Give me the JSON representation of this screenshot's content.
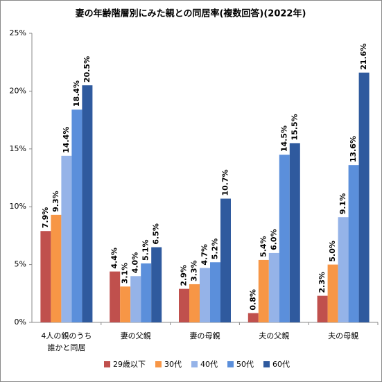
{
  "chart_data": {
    "type": "bar",
    "title": "妻の年齢階層別にみた親との同居率(複数回答)(2022年)",
    "categories": [
      "4人の親のうち\n誰かと同居",
      "妻の父親",
      "妻の母親",
      "夫の父親",
      "夫の母親"
    ],
    "series": [
      {
        "name": "29歳以下",
        "color": "#c0504d",
        "values": [
          7.9,
          4.4,
          2.9,
          0.8,
          2.3
        ],
        "value_labels": [
          "7.9%",
          "4.4%",
          "2.9%",
          "0.8%",
          "2.3%"
        ]
      },
      {
        "name": "30代",
        "color": "#f79646",
        "values": [
          9.3,
          3.1,
          3.3,
          5.4,
          5.0
        ],
        "value_labels": [
          "9.3%",
          "3.1%",
          "3.3%",
          "5.4%",
          "5.0%"
        ]
      },
      {
        "name": "40代",
        "color": "#95b3e8",
        "values": [
          14.4,
          4.0,
          4.7,
          6.0,
          9.1
        ],
        "value_labels": [
          "14.4%",
          "4.0%",
          "4.7%",
          "6.0%",
          "9.1%"
        ]
      },
      {
        "name": "50代",
        "color": "#5b8fdb",
        "values": [
          18.4,
          5.1,
          5.2,
          14.5,
          13.6
        ],
        "value_labels": [
          "18.4%",
          "5.1%",
          "5.2%",
          "14.5%",
          "13.6%"
        ]
      },
      {
        "name": "60代",
        "color": "#2f5a9e",
        "values": [
          20.5,
          6.5,
          10.7,
          15.5,
          21.6
        ],
        "value_labels": [
          "20.5%",
          "6.5%",
          "10.7%",
          "15.5%",
          "21.6%"
        ]
      }
    ],
    "ylim": [
      0,
      25
    ],
    "yticks": [
      {
        "value": 0,
        "label": "0%"
      },
      {
        "value": 5,
        "label": "5%"
      },
      {
        "value": 10,
        "label": "10%"
      },
      {
        "value": 15,
        "label": "15%"
      },
      {
        "value": 20,
        "label": "20%"
      },
      {
        "value": 25,
        "label": "25%"
      }
    ],
    "grid": false,
    "legend": "bottom"
  }
}
